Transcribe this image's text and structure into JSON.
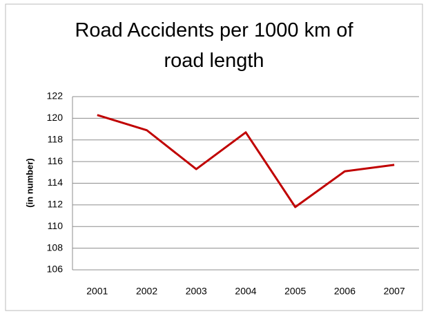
{
  "chart_data": {
    "type": "line",
    "title": "Road Accidents per 1000 km of road length",
    "y_label": "(in number)",
    "categories": [
      "2001",
      "2002",
      "2003",
      "2004",
      "2005",
      "2006",
      "2007"
    ],
    "series": [
      {
        "name": "Road Accidents",
        "color": "#c00000",
        "values": [
          120.3,
          118.9,
          115.3,
          118.7,
          111.8,
          115.1,
          115.7
        ]
      }
    ],
    "ylim": [
      106,
      122
    ],
    "yticks": [
      106,
      108,
      110,
      112,
      114,
      116,
      118,
      120,
      122
    ],
    "grid": true
  }
}
